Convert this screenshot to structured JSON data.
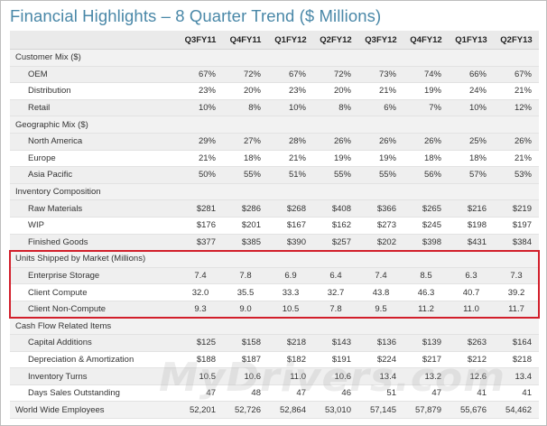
{
  "title": "Financial Highlights – 8 Quarter Trend ($ Millions)",
  "watermark": "MyDrivers.com",
  "columns": [
    "Q3FY11",
    "Q4FY11",
    "Q1FY12",
    "Q2FY12",
    "Q3FY12",
    "Q4FY12",
    "Q1FY13",
    "Q2FY13"
  ],
  "highlight_color": "#d21f2b",
  "title_color": "#4a88a8",
  "rows": [
    {
      "type": "sec",
      "label": "Customer Mix ($)",
      "values": []
    },
    {
      "type": "sub",
      "label": "OEM",
      "values": [
        "67%",
        "72%",
        "67%",
        "72%",
        "73%",
        "74%",
        "66%",
        "67%"
      ]
    },
    {
      "type": "sub",
      "label": "Distribution",
      "values": [
        "23%",
        "20%",
        "23%",
        "20%",
        "21%",
        "19%",
        "24%",
        "21%"
      ]
    },
    {
      "type": "sub",
      "label": "Retail",
      "values": [
        "10%",
        "8%",
        "10%",
        "8%",
        "6%",
        "7%",
        "10%",
        "12%"
      ]
    },
    {
      "type": "sec",
      "label": "Geographic Mix ($)",
      "values": []
    },
    {
      "type": "sub",
      "label": "North America",
      "values": [
        "29%",
        "27%",
        "28%",
        "26%",
        "26%",
        "26%",
        "25%",
        "26%"
      ]
    },
    {
      "type": "sub",
      "label": "Europe",
      "values": [
        "21%",
        "18%",
        "21%",
        "19%",
        "19%",
        "18%",
        "18%",
        "21%"
      ]
    },
    {
      "type": "sub",
      "label": "Asia Pacific",
      "values": [
        "50%",
        "55%",
        "51%",
        "55%",
        "55%",
        "56%",
        "57%",
        "53%"
      ]
    },
    {
      "type": "sec",
      "label": "Inventory Composition",
      "values": []
    },
    {
      "type": "sub",
      "label": "Raw Materials",
      "values": [
        "$281",
        "$286",
        "$268",
        "$408",
        "$366",
        "$265",
        "$216",
        "$219"
      ]
    },
    {
      "type": "sub",
      "label": "WIP",
      "values": [
        "$176",
        "$201",
        "$167",
        "$162",
        "$273",
        "$245",
        "$198",
        "$197"
      ]
    },
    {
      "type": "sub",
      "label": "Finished Goods",
      "values": [
        "$377",
        "$385",
        "$390",
        "$257",
        "$202",
        "$398",
        "$431",
        "$384"
      ]
    },
    {
      "type": "sec",
      "label": "Units Shipped by Market (Millions)",
      "values": [],
      "hl": true
    },
    {
      "type": "sub",
      "label": "Enterprise Storage",
      "values": [
        "7.4",
        "7.8",
        "6.9",
        "6.4",
        "7.4",
        "8.5",
        "6.3",
        "7.3"
      ],
      "hl": true
    },
    {
      "type": "sub",
      "label": "Client Compute",
      "values": [
        "32.0",
        "35.5",
        "33.3",
        "32.7",
        "43.8",
        "46.3",
        "40.7",
        "39.2"
      ],
      "hl": true
    },
    {
      "type": "sub",
      "label": "Client Non-Compute",
      "values": [
        "9.3",
        "9.0",
        "10.5",
        "7.8",
        "9.5",
        "11.2",
        "11.0",
        "11.7"
      ],
      "hl": true
    },
    {
      "type": "sec",
      "label": "Cash Flow Related Items",
      "values": []
    },
    {
      "type": "sub",
      "label": "Capital Additions",
      "values": [
        "$125",
        "$158",
        "$218",
        "$143",
        "$136",
        "$139",
        "$263",
        "$164"
      ]
    },
    {
      "type": "sub",
      "label": "Depreciation & Amortization",
      "values": [
        "$188",
        "$187",
        "$182",
        "$191",
        "$224",
        "$217",
        "$212",
        "$218"
      ]
    },
    {
      "type": "sub",
      "label": "Inventory Turns",
      "values": [
        "10.5",
        "10.6",
        "11.0",
        "10.6",
        "13.4",
        "13.2",
        "12.6",
        "13.4"
      ]
    },
    {
      "type": "sub",
      "label": "Days Sales Outstanding",
      "values": [
        "47",
        "48",
        "47",
        "46",
        "51",
        "47",
        "41",
        "41"
      ]
    },
    {
      "type": "sec",
      "label": "World Wide Employees",
      "values": [
        "52,201",
        "52,726",
        "52,864",
        "53,010",
        "57,145",
        "57,879",
        "55,676",
        "54,462"
      ]
    }
  ]
}
